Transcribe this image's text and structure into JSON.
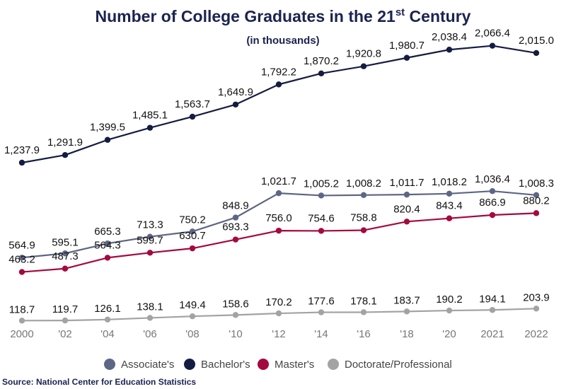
{
  "chart_data": {
    "type": "line",
    "title": "Number of College Graduates in the 21",
    "title_superscript": "st",
    "title_suffix": " Century",
    "subtitle": "(in thousands)",
    "categories": [
      "2000",
      "'02",
      "'04",
      "'06",
      "'08",
      "'10",
      "'12",
      "'14",
      "'16",
      "'18",
      "'20",
      "2021",
      "2022"
    ],
    "x": [
      2000,
      2002,
      2004,
      2006,
      2008,
      2010,
      2012,
      2014,
      2016,
      2018,
      2020,
      2021,
      2022
    ],
    "series": [
      {
        "name": "Associate's",
        "color": "#5e6685",
        "values": [
          564.9,
          595.1,
          665.3,
          713.3,
          750.2,
          848.9,
          1021.7,
          1005.2,
          1008.2,
          1011.7,
          1018.2,
          1036.4,
          1008.3
        ],
        "labels": [
          "564.9",
          "595.1",
          "665.3",
          "713.3",
          "750.2",
          "848.9",
          "1,021.7",
          "1,005.2",
          "1,008.2",
          "1,011.7",
          "1,018.2",
          "1,036.4",
          "1,008.3"
        ]
      },
      {
        "name": "Bachelor's",
        "color": "#151c42",
        "values": [
          1237.9,
          1291.9,
          1399.5,
          1485.1,
          1563.7,
          1649.9,
          1792.2,
          1870.2,
          1920.8,
          1980.7,
          2038.4,
          2066.4,
          2015.0
        ],
        "labels": [
          "1,237.9",
          "1,291.9",
          "1,399.5",
          "1,485.1",
          "1,563.7",
          "1,649.9",
          "1,792.2",
          "1,870.2",
          "1,920.8",
          "1,980.7",
          "2,038.4",
          "2,066.4",
          "2,015.0"
        ]
      },
      {
        "name": "Master's",
        "color": "#a5093d",
        "values": [
          463.2,
          487.3,
          564.3,
          599.7,
          630.7,
          693.3,
          756.0,
          754.6,
          758.8,
          820.4,
          843.4,
          866.9,
          880.2
        ],
        "labels": [
          "463.2",
          "487.3",
          "564.3",
          "599.7",
          "630.7",
          "693.3",
          "756.0",
          "754.6",
          "758.8",
          "820.4",
          "843.4",
          "866.9",
          "880.2"
        ]
      },
      {
        "name": "Doctorate/Professional",
        "color": "#a3a3a3",
        "values": [
          118.7,
          119.7,
          126.1,
          138.1,
          149.4,
          158.6,
          170.2,
          177.6,
          178.1,
          183.7,
          190.2,
          194.1,
          203.9
        ],
        "labels": [
          "118.7",
          "119.7",
          "126.1",
          "138.1",
          "149.4",
          "158.6",
          "170.2",
          "177.6",
          "178.1",
          "183.7",
          "190.2",
          "194.1",
          "203.9"
        ]
      }
    ],
    "ylim": [
      0,
      2200
    ],
    "grid": false,
    "legend_position": "bottom-center",
    "source": "Source: National Center for Education Statistics"
  }
}
